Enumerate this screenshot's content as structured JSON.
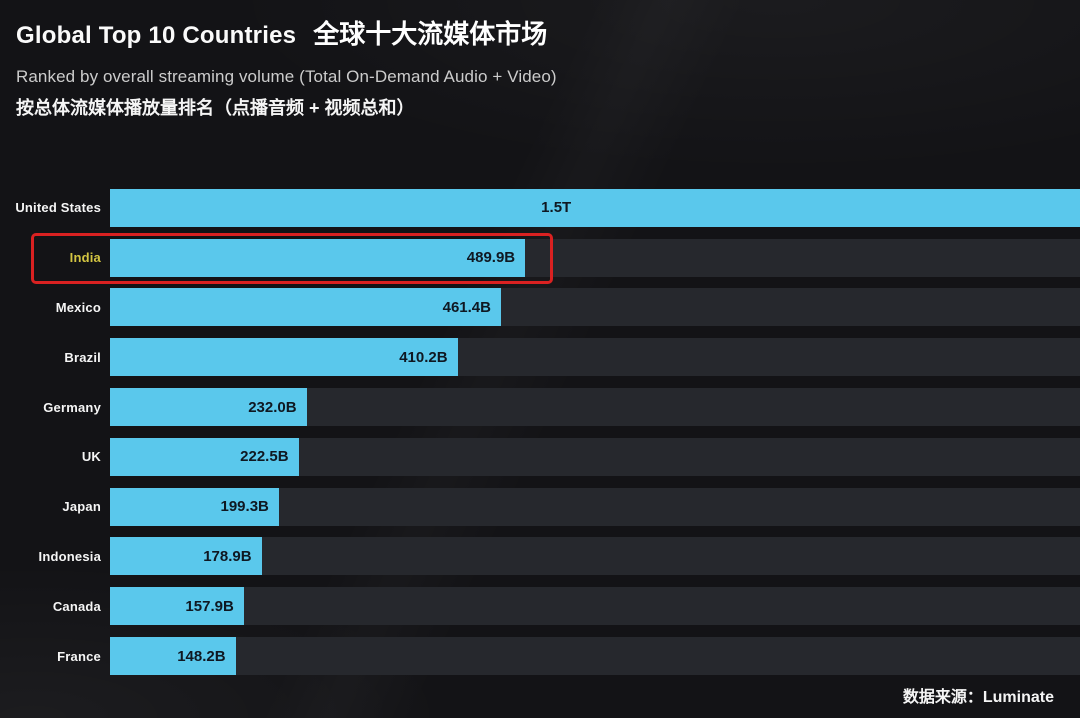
{
  "header": {
    "title_en": "Global Top 10 Countries",
    "title_zh": "全球十大流媒体市场",
    "subtitle_en": "Ranked by overall streaming volume (Total On-Demand Audio + Video)",
    "subtitle_zh": "按总体流媒体播放量排名（点播音频 + 视频总和）"
  },
  "footer": {
    "source": "数据来源：Luminate"
  },
  "colors": {
    "background": "#131316",
    "bar": "#5ac8ec",
    "track": "#26282d",
    "value_text": "#0f1822",
    "label_text": "#f5f5f5",
    "highlight_label": "#d3c542",
    "highlight_border": "#d92121"
  },
  "chart_data": {
    "type": "bar",
    "orientation": "horizontal",
    "title": "Global Top 10 Countries 全球十大流媒体市场",
    "subtitle": "Ranked by overall streaming volume (Total On-Demand Audio + Video)",
    "unit": "on-demand audio + video streams",
    "categories": [
      "United States",
      "India",
      "Mexico",
      "Brazil",
      "Germany",
      "UK",
      "Japan",
      "Indonesia",
      "Canada",
      "France"
    ],
    "values_billions": [
      1500,
      489.9,
      461.4,
      410.2,
      232.0,
      222.5,
      199.3,
      178.9,
      157.9,
      148.2
    ],
    "value_labels": [
      "1.5T",
      "489.9B",
      "461.4B",
      "410.2B",
      "232.0B",
      "222.5B",
      "199.3B",
      "178.9B",
      "157.9B",
      "148.2B"
    ],
    "highlighted_category": "India",
    "axis_max_visible_billions": 1145,
    "clipped_categories": [
      "United States"
    ],
    "grid": false,
    "legend": false,
    "source": "Luminate"
  }
}
